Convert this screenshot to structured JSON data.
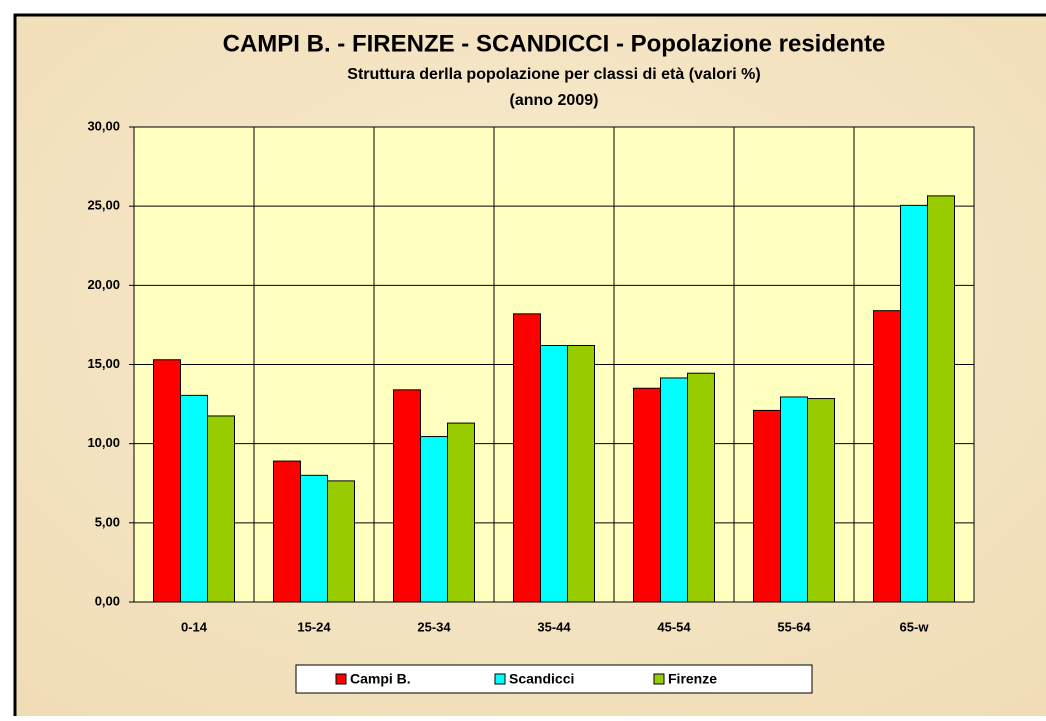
{
  "chart_data": {
    "type": "bar",
    "title": "CAMPI B. - FIRENZE - SCANDICCI - Popolazione residente",
    "subtitle": [
      "Struttura derlla popolazione per classi di età (valori %)",
      "(anno 2009)"
    ],
    "categories": [
      "0-14",
      "15-24",
      "25-34",
      "35-44",
      "45-54",
      "55-64",
      "65-w"
    ],
    "series": [
      {
        "name": "Campi B.",
        "color": "#ff0000",
        "values": [
          15.3,
          8.9,
          13.4,
          18.2,
          13.5,
          12.1,
          18.4
        ]
      },
      {
        "name": "Scandicci",
        "color": "#00ffff",
        "values": [
          13.05,
          8.0,
          10.45,
          16.2,
          14.15,
          12.95,
          25.05
        ]
      },
      {
        "name": "Firenze",
        "color": "#99cc00",
        "values": [
          11.75,
          7.65,
          11.3,
          16.2,
          14.45,
          12.85,
          25.65
        ]
      }
    ],
    "ylim": [
      0,
      30
    ],
    "yticks": [
      {
        "value": 0,
        "label": "0,00"
      },
      {
        "value": 5,
        "label": "5,00"
      },
      {
        "value": 10,
        "label": "10,00"
      },
      {
        "value": 15,
        "label": "15,00"
      },
      {
        "value": 20,
        "label": "20,00"
      },
      {
        "value": 25,
        "label": "25,00"
      },
      {
        "value": 30,
        "label": "30,00"
      }
    ],
    "grid": true,
    "legend": "bottom"
  }
}
